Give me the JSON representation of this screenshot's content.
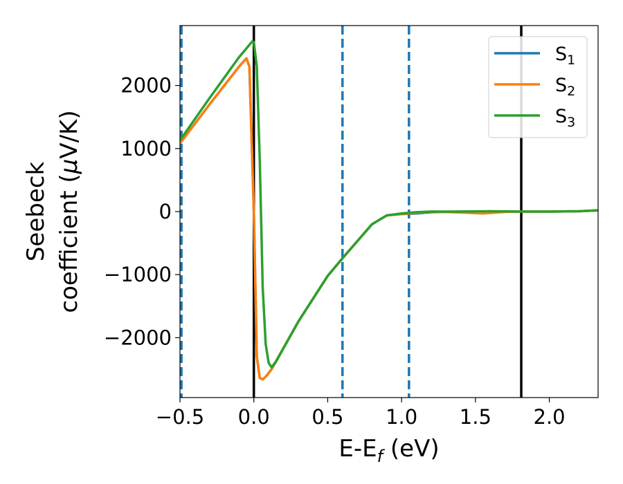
{
  "chart_data": {
    "type": "line",
    "title": "",
    "xlabel_main": "E-E",
    "xlabel_sub": "f",
    "xlabel_unit": " (eV)",
    "ylabel_line1": "Seebeck",
    "ylabel_line2_pre": "coefficient  (",
    "ylabel_mu": "μ",
    "ylabel_line2_post": "V/K)",
    "xlim": [
      -0.5,
      2.33
    ],
    "ylim": [
      -2950,
      2950
    ],
    "xticks": [
      -0.5,
      0.0,
      0.5,
      1.0,
      1.5,
      2.0
    ],
    "xtick_labels": [
      "−0.5",
      "0.0",
      "0.5",
      "1.0",
      "1.5",
      "2.0"
    ],
    "yticks": [
      -2000,
      -1000,
      0,
      1000,
      2000
    ],
    "ytick_labels": [
      "−2000",
      "−1000",
      "0",
      "1000",
      "2000"
    ],
    "grid": false,
    "legend_position": "top-right",
    "vlines_solid": [
      0.0,
      1.81
    ],
    "vlines_dashed": [
      -0.49,
      0.6,
      1.05
    ],
    "vline_solid_color": "#000000",
    "vline_dashed_color": "#1f77b4",
    "series": [
      {
        "name": "S",
        "sub": "1",
        "color": "#1f77b4",
        "x": [
          -0.5,
          -0.3,
          -0.1,
          -0.05,
          -0.03,
          0.0,
          0.02,
          0.04,
          0.06,
          0.08,
          0.12,
          0.3,
          0.5,
          0.6,
          0.8,
          0.9,
          1.0,
          1.1,
          1.2,
          1.4,
          1.6,
          1.8,
          2.0,
          2.2,
          2.33
        ],
        "y": [
          1080,
          1700,
          2300,
          2430,
          2300,
          0,
          -2300,
          -2640,
          -2660,
          -2620,
          -2500,
          -1750,
          -1020,
          -740,
          -200,
          -60,
          -40,
          -30,
          -10,
          0,
          0,
          0,
          0,
          5,
          20
        ]
      },
      {
        "name": "S",
        "sub": "2",
        "color": "#ff7f0e",
        "x": [
          -0.5,
          -0.3,
          -0.1,
          -0.05,
          -0.03,
          0.0,
          0.02,
          0.04,
          0.06,
          0.08,
          0.12,
          0.3,
          0.5,
          0.6,
          0.8,
          0.9,
          1.0,
          1.1,
          1.2,
          1.4,
          1.55,
          1.7,
          1.8,
          2.0,
          2.2,
          2.33
        ],
        "y": [
          1080,
          1700,
          2300,
          2430,
          2300,
          0,
          -2300,
          -2640,
          -2660,
          -2620,
          -2500,
          -1750,
          -1020,
          -740,
          -200,
          -60,
          -40,
          -20,
          0,
          -15,
          -30,
          -5,
          0,
          0,
          5,
          20
        ]
      },
      {
        "name": "S",
        "sub": "3",
        "color": "#2ca02c",
        "x": [
          -0.5,
          -0.3,
          -0.1,
          -0.01,
          0.0,
          0.02,
          0.04,
          0.06,
          0.08,
          0.1,
          0.12,
          0.15,
          0.3,
          0.5,
          0.6,
          0.8,
          0.9,
          1.0,
          1.1,
          1.2,
          1.4,
          1.6,
          1.8,
          2.0,
          2.2,
          2.33
        ],
        "y": [
          1130,
          1800,
          2450,
          2700,
          2690,
          2300,
          800,
          -1200,
          -2100,
          -2400,
          -2470,
          -2380,
          -1750,
          -1020,
          -740,
          -200,
          -60,
          -30,
          -10,
          0,
          0,
          5,
          0,
          0,
          5,
          20
        ]
      }
    ]
  }
}
